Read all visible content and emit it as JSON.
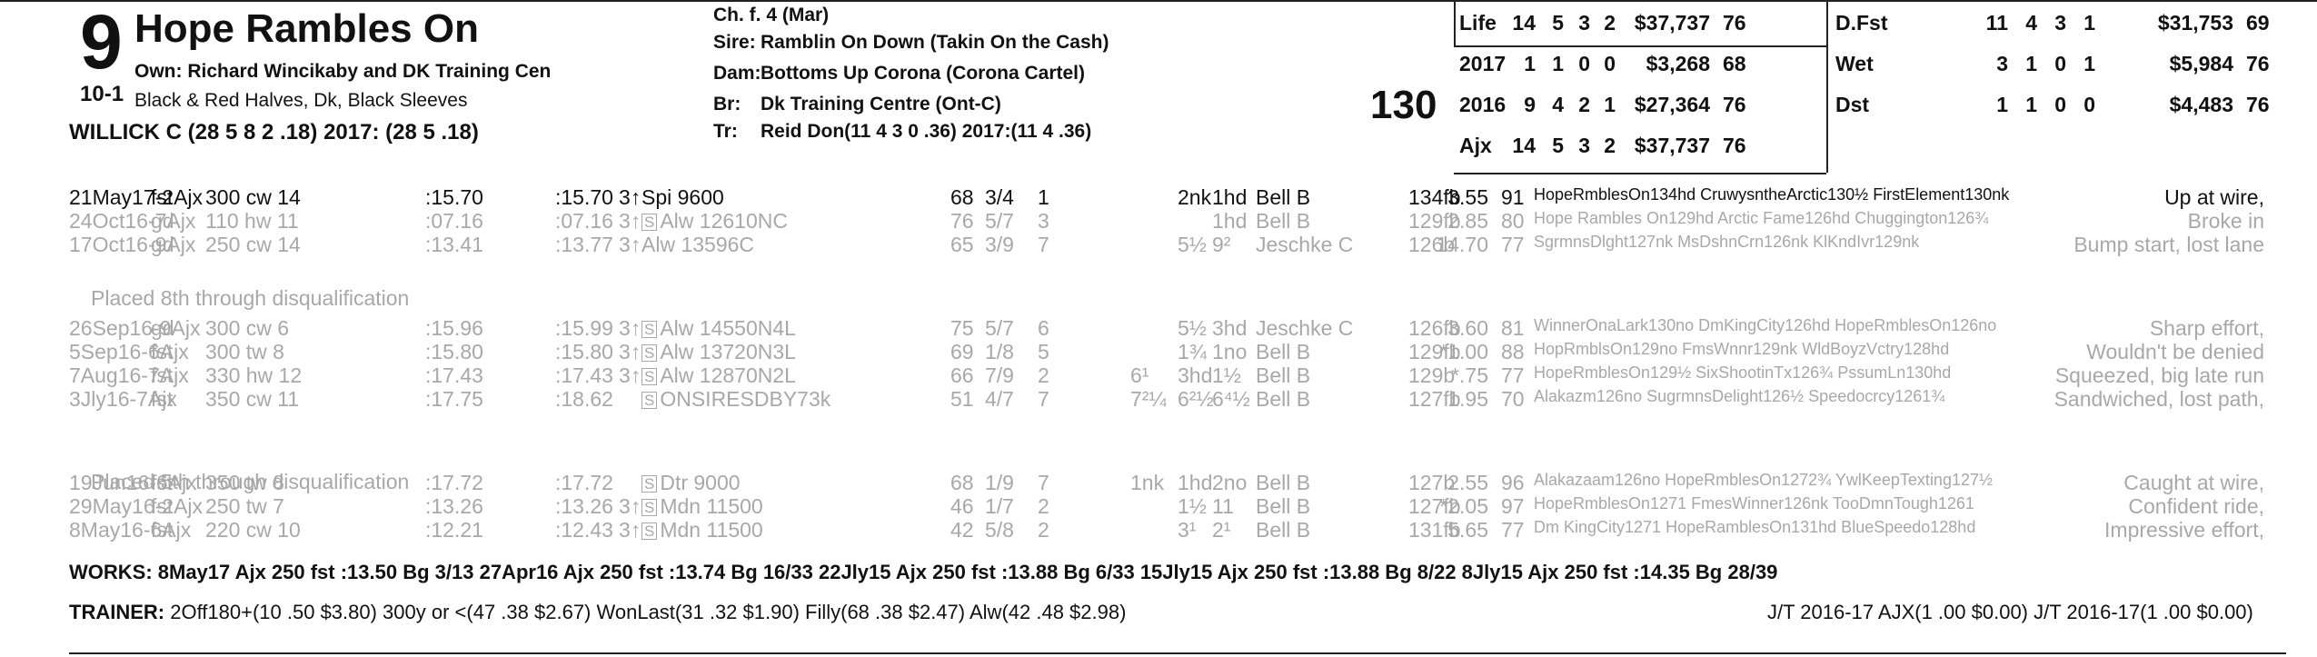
{
  "header": {
    "program_number": "9",
    "odds": "10-1",
    "horse_name": "Hope Rambles On",
    "owner": "Own: Richard Wincikaby and DK Training Cen",
    "silks": "Black & Red Halves, Dk, Black Sleeves",
    "jockey": "WILLICK C (28 5 8 2 .18) 2017: (28 5 .18)",
    "sex_age": "Ch. f. 4 (Mar)",
    "sire_label": "Sire:",
    "sire": "Ramblin On Down (Takin On the Cash)",
    "dam_label": "Dam:",
    "dam": "Bottoms Up Corona (Corona Cartel)",
    "breeder_label": "Br:",
    "breeder": "Dk Training Centre (Ont-C)",
    "trainer_label": "Tr:",
    "trainer": "Reid Don(11 4 3 0 .36) 2017:(11 4 .36)",
    "weight": "130"
  },
  "stats_left": [
    {
      "label": "Life",
      "starts": "14",
      "w": "5",
      "p": "3",
      "s": "2",
      "earn": "$37,737",
      "spd": "76"
    },
    {
      "label": "2017",
      "starts": "1",
      "w": "1",
      "p": "0",
      "s": "0",
      "earn": "$3,268",
      "spd": "68"
    },
    {
      "label": "2016",
      "starts": "9",
      "w": "4",
      "p": "2",
      "s": "1",
      "earn": "$27,364",
      "spd": "76"
    },
    {
      "label": "Ajx",
      "starts": "14",
      "w": "5",
      "p": "3",
      "s": "2",
      "earn": "$37,737",
      "spd": "76"
    }
  ],
  "stats_right": [
    {
      "label": "D.Fst",
      "starts": "11",
      "w": "4",
      "p": "3",
      "s": "1",
      "earn": "$31,753",
      "spd": "69"
    },
    {
      "label": "Wet",
      "starts": "3",
      "w": "1",
      "p": "0",
      "s": "1",
      "earn": "$5,984",
      "spd": "76"
    },
    {
      "label": "Dst",
      "starts": "1",
      "w": "1",
      "p": "0",
      "s": "0",
      "earn": "$4,483",
      "spd": "76"
    }
  ],
  "races": [
    {
      "date": "21May17-2Ajx",
      "cond": "fst",
      "dist": "300 cw 14",
      "t1": ":15.70",
      "t2": ":15.70",
      "age": "3↑",
      "s": "",
      "race": "Spi 9600",
      "sp": "68",
      "pp": "3/4",
      "st": "1",
      "c1": "",
      "c2": "2nk",
      "c3": "1hd",
      "jock": "Bell B",
      "wt": "134fb",
      "odds": "3.55",
      "sr": "91",
      "comp": "HopeRmblesOn134hd CruwysntheArctic130½ FirstElement130nk",
      "remark": "Up at wire,",
      "bold": true
    },
    {
      "date": "24Oct16-7Ajx",
      "cond": "gd",
      "dist": "110 hw 11",
      "t1": ":07.16",
      "t2": ":07.16",
      "age": "3↑",
      "s": "S",
      "race": "Alw 12610NC",
      "sp": "76",
      "pp": "5/7",
      "st": "3",
      "c1": "",
      "c2": "",
      "c3": "1hd",
      "jock": "Bell B",
      "wt": "129fb",
      "odds": "2.85",
      "sr": "80",
      "comp": "Hope Rambles On129hd Arctic Fame126hd Chuggington126¾",
      "remark": "Broke in",
      "bold": false
    },
    {
      "date": "17Oct16-9Ajx",
      "cond": "gd",
      "dist": "250 cw 14",
      "t1": ":13.41",
      "t2": ":13.77",
      "age": "3↑",
      "s": "",
      "race": "Alw 13596C",
      "sp": "65",
      "pp": "3/9",
      "st": "7",
      "c1": "",
      "c2": "5½",
      "c3": "9²",
      "jock": "Jeschke C",
      "wt": "126b",
      "odds": "14.70",
      "sr": "77",
      "comp": "SgrmnsDlght127nk MsDshnCrn126nk KlKndIvr129nk",
      "remark": "Bump start, lost lane",
      "bold": false
    },
    {
      "date": "26Sep16-9Ajx",
      "cond": "gd",
      "dist": "300 cw 6",
      "t1": ":15.96",
      "t2": ":15.99",
      "age": "3↑",
      "s": "S",
      "race": "Alw 14550N4L",
      "sp": "75",
      "pp": "5/7",
      "st": "6",
      "c1": "",
      "c2": "5½",
      "c3": "3hd",
      "jock": "Jeschke C",
      "wt": "126fb",
      "odds": "3.60",
      "sr": "81",
      "comp": "WinnerOnaLark130no DmKingCity126hd HopeRmblesOn126no",
      "remark": "Sharp effort,",
      "bold": false
    },
    {
      "date": "5Sep16-6Ajx",
      "cond": "fst",
      "dist": "300 tw 8",
      "t1": ":15.80",
      "t2": ":15.80",
      "age": "3↑",
      "s": "S",
      "race": "Alw 13720N3L",
      "sp": "69",
      "pp": "1/8",
      "st": "5",
      "c1": "",
      "c2": "1¾",
      "c3": "1no",
      "jock": "Bell B",
      "wt": "129fb",
      "odds": "*1.00",
      "sr": "88",
      "comp": "HopRmblsOn129no FmsWnnr129nk WldBoyzVctry128hd",
      "remark": "Wouldn't be denied",
      "bold": false
    },
    {
      "date": "7Aug16-7Ajx",
      "cond": "fst",
      "dist": "330 hw 12",
      "t1": ":17.43",
      "t2": ":17.43",
      "age": "3↑",
      "s": "S",
      "race": "Alw 12870N2L",
      "sp": "66",
      "pp": "7/9",
      "st": "2",
      "c1": "6¹",
      "c2": "3hd",
      "c3": "1½",
      "jock": "Bell B",
      "wt": "129b",
      "odds": "*.75",
      "sr": "77",
      "comp": "HopeRmblesOn129½ SixShootinTx126¾ PssumLn130hd",
      "remark": "Squeezed, big late run",
      "bold": false
    },
    {
      "date": "3Jly16-7Ajx",
      "cond": "fst",
      "dist": "350 cw 11",
      "t1": ":17.75",
      "t2": ":18.62",
      "age": "",
      "s": "S",
      "race": "ONSIRESDBY73k",
      "sp": "51",
      "pp": "4/7",
      "st": "7",
      "c1": "7²¼",
      "c2": "6²½",
      "c3": "6⁴½",
      "jock": "Bell B",
      "wt": "127fb",
      "odds": "1.95",
      "sr": "70",
      "comp": "Alakazm126no SugrmnsDelight126½ Speedocrcy1261¾",
      "remark": "Sandwiched, lost path,",
      "bold": false
    },
    {
      "date": "19Jun16-6Ajx",
      "cond": "fst",
      "dist": "350 tw 8",
      "t1": ":17.72",
      "t2": ":17.72",
      "age": "",
      "s": "S",
      "race": "Dtr 9000",
      "sp": "68",
      "pp": "1/9",
      "st": "7",
      "c1": "1nk",
      "c2": "1hd",
      "c3": "2no",
      "jock": "Bell B",
      "wt": "127b",
      "odds": "2.55",
      "sr": "96",
      "comp": "Alakazaam126no HopeRmblesOn1272¾ YwlKeepTexting127½",
      "remark": "Caught at wire,",
      "bold": false
    },
    {
      "date": "29May16-2Ajx",
      "cond": "fst",
      "dist": "250 tw 7",
      "t1": ":13.26",
      "t2": ":13.26",
      "age": "3↑",
      "s": "S",
      "race": "Mdn 11500",
      "sp": "46",
      "pp": "1/7",
      "st": "2",
      "c1": "",
      "c2": "1½",
      "c3": "11",
      "jock": "Bell B",
      "wt": "127fb",
      "odds": "*2.05",
      "sr": "97",
      "comp": "HopeRmblesOn1271 FmesWinner126nk TooDmnTough1261",
      "remark": "Confident ride,",
      "bold": false
    },
    {
      "date": "8May16-6Ajx",
      "cond": "fst",
      "dist": "220 cw 10",
      "t1": ":12.21",
      "t2": ":12.43",
      "age": "3↑",
      "s": "S",
      "race": "Mdn 11500",
      "sp": "42",
      "pp": "5/8",
      "st": "2",
      "c1": "",
      "c2": "3¹",
      "c3": "2¹",
      "jock": "Bell B",
      "wt": "131fb",
      "odds": "5.65",
      "sr": "77",
      "comp": "Dm KingCity1271 HopeRamblesOn131hd BlueSpeedo128hd",
      "remark": "Impressive effort,",
      "bold": false
    }
  ],
  "notes": [
    "Placed 8th through disqualification",
    "Placed 5th through disqualification"
  ],
  "works": "WORKS:  8May17 Ajx 250 fst :13.50 Bg 3/13   27Apr16 Ajx 250 fst :13.74 Bg 16/33   22Jly15 Ajx 250 fst :13.88 Bg 6/33   15Jly15 Ajx 250 fst :13.88 Bg 8/22   8Jly15 Ajx 250 fst :14.35 Bg 28/39",
  "trainer_stats_label": "TRAINER:",
  "trainer_stats": "2Off180+(10 .50 $3.80) 300y or <(47 .38 $2.67) WonLast(31 .32 $1.90) Filly(68 .38 $2.47) Alw(42 .48 $2.98)",
  "jt_stats": "J/T 2016-17 AJX(1 .00 $0.00)  J/T 2016-17(1 .00 $0.00)"
}
